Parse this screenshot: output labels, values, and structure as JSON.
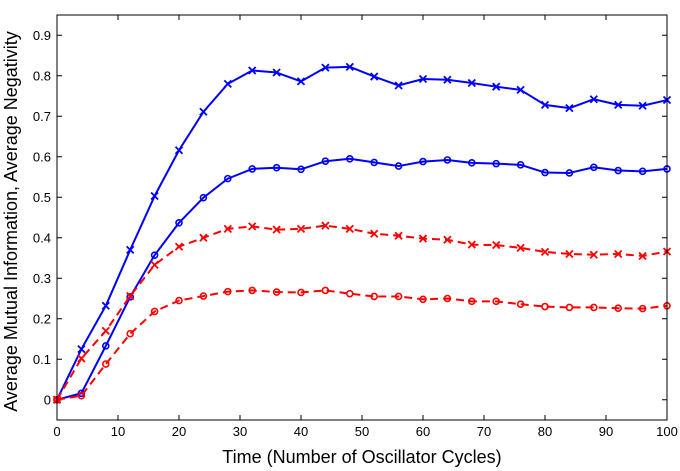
{
  "chart_data": {
    "type": "line",
    "title": "",
    "xlabel": "Time (Number of Oscillator Cycles)",
    "ylabel": "Average Mutual Information, Average Negativity",
    "xlim": [
      0,
      100
    ],
    "ylim": [
      -0.05,
      0.95
    ],
    "xticks": [
      0,
      10,
      20,
      30,
      40,
      50,
      60,
      70,
      80,
      90,
      100
    ],
    "yticks": [
      0,
      0.1,
      0.2,
      0.3,
      0.4,
      0.5,
      0.6,
      0.7,
      0.8,
      0.9
    ],
    "xtick_labels": [
      "0",
      "10",
      "20",
      "30",
      "40",
      "50",
      "60",
      "70",
      "80",
      "90",
      "100"
    ],
    "ytick_labels": [
      "0",
      "0.1",
      "0.2",
      "0.3",
      "0.4",
      "0.5",
      "0.6",
      "0.7",
      "0.8",
      "0.9"
    ],
    "grid": false,
    "x": [
      0,
      4,
      8,
      12,
      16,
      20,
      24,
      28,
      32,
      36,
      40,
      44,
      48,
      52,
      56,
      60,
      64,
      68,
      72,
      76,
      80,
      84,
      88,
      92,
      96,
      100
    ],
    "series": [
      {
        "name": "blue-x-solid",
        "color": "#0000ff",
        "line_style": "solid",
        "marker": "x",
        "values": [
          0,
          0.125,
          0.232,
          0.37,
          0.503,
          0.616,
          0.711,
          0.78,
          0.813,
          0.808,
          0.786,
          0.82,
          0.822,
          0.798,
          0.776,
          0.792,
          0.79,
          0.782,
          0.773,
          0.765,
          0.728,
          0.72,
          0.742,
          0.728,
          0.726,
          0.74
        ]
      },
      {
        "name": "blue-o-solid",
        "color": "#0000ff",
        "line_style": "solid",
        "marker": "o",
        "values": [
          0,
          0.016,
          0.133,
          0.254,
          0.357,
          0.437,
          0.499,
          0.546,
          0.57,
          0.573,
          0.569,
          0.589,
          0.595,
          0.586,
          0.577,
          0.588,
          0.592,
          0.585,
          0.583,
          0.58,
          0.561,
          0.56,
          0.574,
          0.566,
          0.564,
          0.57
        ]
      },
      {
        "name": "red-x-dashed",
        "color": "#ff0000",
        "line_style": "dashed",
        "marker": "x",
        "values": [
          0,
          0.102,
          0.17,
          0.256,
          0.333,
          0.378,
          0.4,
          0.422,
          0.428,
          0.42,
          0.422,
          0.43,
          0.422,
          0.41,
          0.405,
          0.398,
          0.395,
          0.383,
          0.382,
          0.375,
          0.365,
          0.36,
          0.358,
          0.36,
          0.355,
          0.366
        ]
      },
      {
        "name": "red-o-dashed",
        "color": "#ff0000",
        "line_style": "dashed",
        "marker": "o",
        "values": [
          0,
          0.01,
          0.088,
          0.163,
          0.218,
          0.245,
          0.256,
          0.267,
          0.27,
          0.266,
          0.265,
          0.27,
          0.262,
          0.255,
          0.255,
          0.248,
          0.25,
          0.243,
          0.243,
          0.236,
          0.23,
          0.228,
          0.228,
          0.226,
          0.225,
          0.232
        ]
      }
    ]
  }
}
